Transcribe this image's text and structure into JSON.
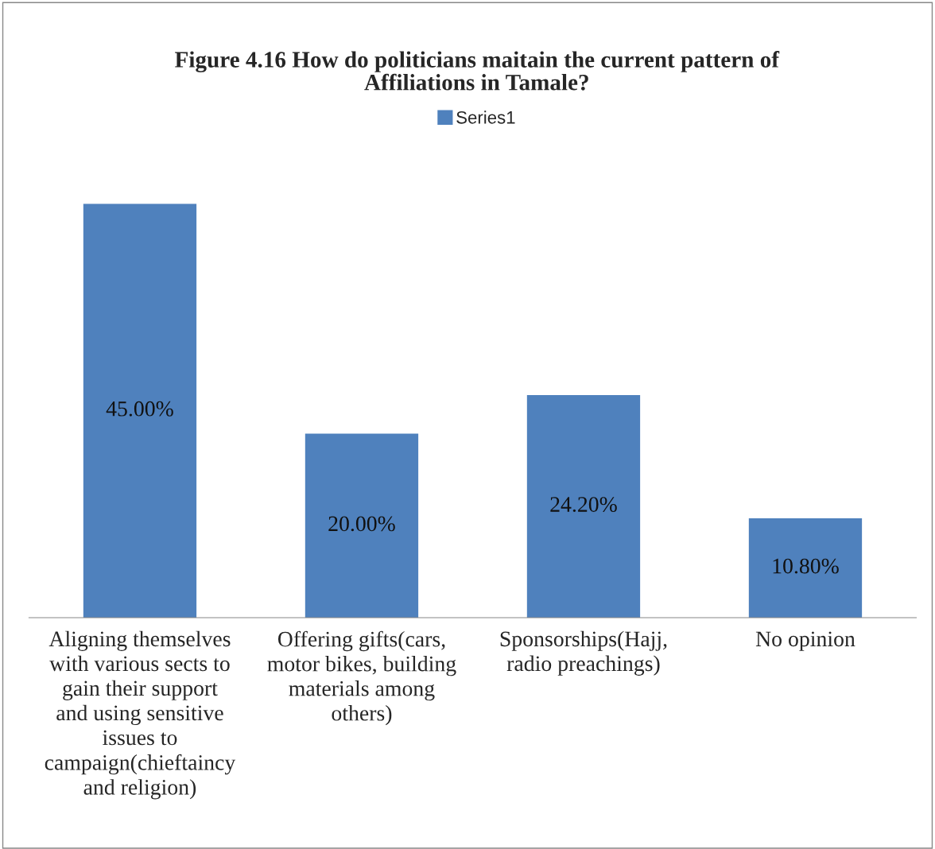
{
  "chart_data": {
    "type": "bar",
    "title": "Figure 4.16 How do politicians maitain the current pattern of\nAffiliations in Tamale?",
    "categories": [
      "Aligning themselves\nwith various sects to\ngain their support\nand using sensitive\nissues to\ncampaign(chieftaincy\nand religion)",
      "Offering gifts(cars,\nmotor bikes, building\nmaterials among\nothers)",
      "Sponsorships(Hajj,\nradio preachings)",
      "No opinion"
    ],
    "series": [
      {
        "name": "Series1",
        "color": "#4f81bd",
        "values": [
          45,
          20,
          24.2,
          10.8
        ],
        "value_labels": [
          "45.00%",
          "20.00%",
          "24.20%",
          "10.80%"
        ]
      }
    ],
    "legend": "top",
    "grid": false
  }
}
